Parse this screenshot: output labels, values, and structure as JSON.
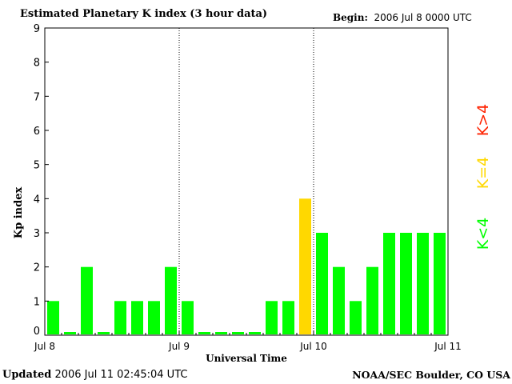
{
  "header": {
    "title": "Estimated Planetary K index (3 hour data)",
    "begin_label": "Begin:",
    "begin_value": "2006 Jul 8 0000 UTC"
  },
  "footer": {
    "updated_label": "Updated",
    "updated_value": "2006 Jul 11 02:45:04 UTC",
    "credit": "NOAA/SEC Boulder, CO USA"
  },
  "legend": [
    {
      "label": "K>4",
      "color": "#ff2200"
    },
    {
      "label": "K=4",
      "color": "#ffd800"
    },
    {
      "label": "K<4",
      "color": "#00ff00"
    }
  ],
  "chart_data": {
    "type": "bar",
    "title": "Estimated Planetary K index (3 hour data)",
    "xlabel": "Universal Time",
    "ylabel": "Kp index",
    "ylim": [
      0,
      9
    ],
    "yticks": [
      "0",
      "1",
      "2",
      "3",
      "4",
      "5",
      "6",
      "7",
      "8",
      "9"
    ],
    "xticks": [
      "Jul 8",
      "Jul 9",
      "Jul 10",
      "Jul 11"
    ],
    "day_separators": [
      "Jul 9",
      "Jul 10"
    ],
    "values": [
      1,
      0,
      2,
      0,
      1,
      1,
      1,
      2,
      1,
      0,
      0,
      0,
      0,
      1,
      1,
      4,
      3,
      2,
      1,
      2,
      3,
      3,
      3,
      3
    ],
    "colors": {
      "below4": "#00ff00",
      "equal4": "#ffd800",
      "above4": "#ff2200"
    },
    "grid": false
  }
}
